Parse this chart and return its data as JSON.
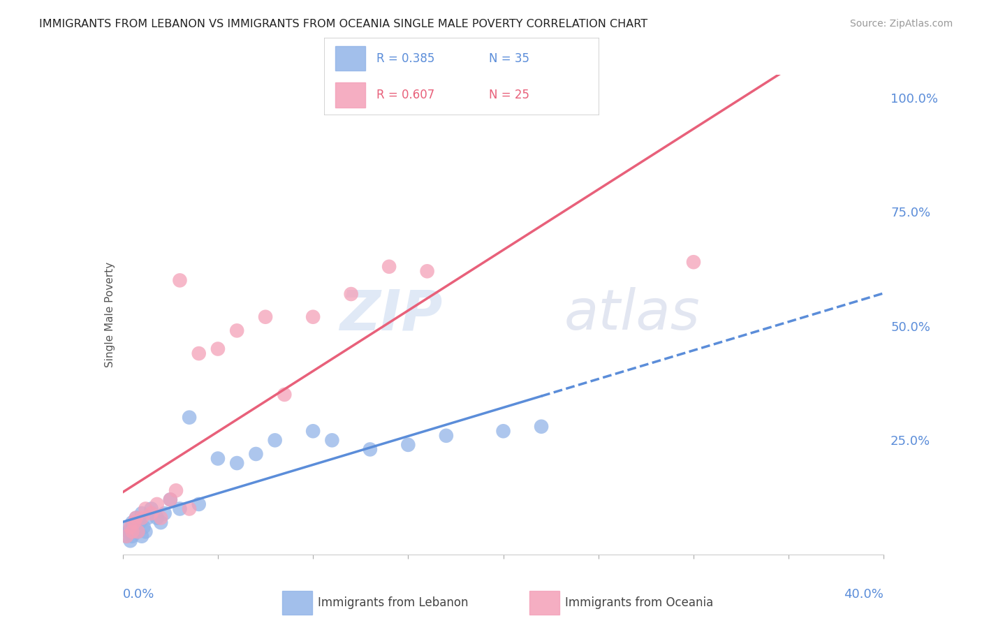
{
  "title": "IMMIGRANTS FROM LEBANON VS IMMIGRANTS FROM OCEANIA SINGLE MALE POVERTY CORRELATION CHART",
  "source": "Source: ZipAtlas.com",
  "ylabel": "Single Male Poverty",
  "legend_label1": "Immigrants from Lebanon",
  "legend_label2": "Immigrants from Oceania",
  "R1": 0.385,
  "N1": 35,
  "R2": 0.607,
  "N2": 25,
  "color_lebanon": "#92b4e8",
  "color_oceania": "#f4a0b8",
  "color_lebanon_line": "#5b8dd9",
  "color_oceania_line": "#e8607a",
  "watermark_zip": "ZIP",
  "watermark_atlas": "atlas",
  "xlim": [
    0.0,
    0.4
  ],
  "ylim": [
    0.0,
    1.05
  ],
  "yticks_right": [
    0.25,
    0.5,
    0.75,
    1.0
  ],
  "ytick_labels_right": [
    "25.0%",
    "50.0%",
    "75.0%",
    "100.0%"
  ],
  "xticks": [
    0.0,
    0.05,
    0.1,
    0.15,
    0.2,
    0.25,
    0.3,
    0.35,
    0.4
  ],
  "lebanon_x": [
    0.002,
    0.003,
    0.003,
    0.004,
    0.005,
    0.005,
    0.006,
    0.007,
    0.007,
    0.008,
    0.009,
    0.01,
    0.01,
    0.011,
    0.012,
    0.013,
    0.015,
    0.018,
    0.02,
    0.022,
    0.025,
    0.03,
    0.035,
    0.04,
    0.05,
    0.06,
    0.07,
    0.08,
    0.1,
    0.11,
    0.13,
    0.15,
    0.17,
    0.2,
    0.22
  ],
  "lebanon_y": [
    0.04,
    0.05,
    0.06,
    0.03,
    0.04,
    0.07,
    0.05,
    0.06,
    0.08,
    0.05,
    0.07,
    0.04,
    0.09,
    0.06,
    0.05,
    0.08,
    0.1,
    0.08,
    0.07,
    0.09,
    0.12,
    0.1,
    0.3,
    0.11,
    0.21,
    0.2,
    0.22,
    0.25,
    0.27,
    0.25,
    0.23,
    0.24,
    0.26,
    0.27,
    0.28
  ],
  "oceania_x": [
    0.002,
    0.004,
    0.005,
    0.006,
    0.007,
    0.008,
    0.01,
    0.012,
    0.015,
    0.018,
    0.02,
    0.025,
    0.028,
    0.03,
    0.035,
    0.04,
    0.05,
    0.06,
    0.075,
    0.085,
    0.1,
    0.12,
    0.14,
    0.16,
    0.3
  ],
  "oceania_y": [
    0.04,
    0.06,
    0.05,
    0.07,
    0.08,
    0.05,
    0.08,
    0.1,
    0.09,
    0.11,
    0.08,
    0.12,
    0.14,
    0.6,
    0.1,
    0.44,
    0.45,
    0.49,
    0.52,
    0.35,
    0.52,
    0.57,
    0.63,
    0.62,
    0.64
  ]
}
